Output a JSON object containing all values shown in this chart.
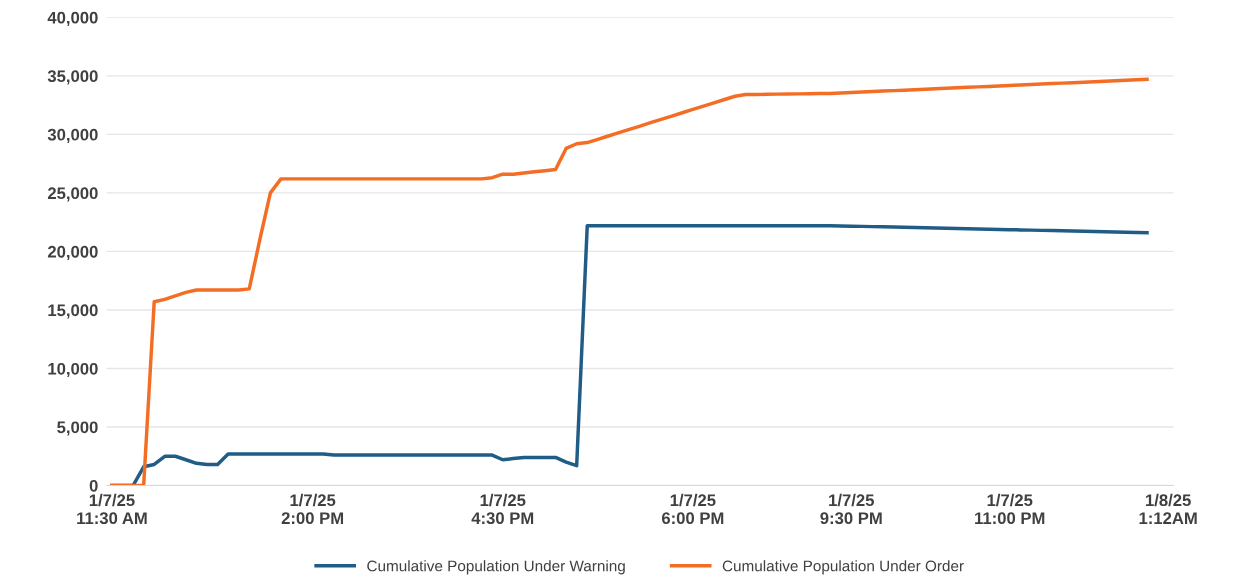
{
  "chart_data": {
    "type": "line",
    "categories": [
      "1/7/25\n11:30 AM",
      null,
      null,
      null,
      null,
      null,
      null,
      null,
      null,
      null,
      null,
      null,
      null,
      null,
      null,
      null,
      null,
      null,
      null,
      "1/7/25\n2:00 PM",
      null,
      null,
      null,
      null,
      null,
      null,
      null,
      null,
      null,
      null,
      null,
      null,
      null,
      null,
      null,
      null,
      null,
      "1/7/25\n4:30 PM",
      null,
      null,
      null,
      null,
      null,
      null,
      null,
      null,
      null,
      null,
      null,
      null,
      null,
      null,
      null,
      null,
      null,
      "1/7/25\n6:00 PM",
      null,
      null,
      null,
      null,
      null,
      null,
      null,
      null,
      null,
      null,
      null,
      null,
      null,
      null,
      "1/7/25\n9:30 PM",
      null,
      null,
      null,
      null,
      null,
      null,
      null,
      null,
      null,
      null,
      null,
      null,
      null,
      null,
      "1/7/25\n11:00 PM",
      null,
      null,
      null,
      null,
      null,
      null,
      null,
      null,
      null,
      null,
      null,
      null,
      null,
      null,
      "1/8/25\n1:12AM"
    ],
    "series": [
      {
        "name": "Cumulative Population Under Warning",
        "color": "#1f5c86",
        "values": [
          0,
          0,
          0,
          1600,
          1800,
          2500,
          2500,
          2200,
          1900,
          1800,
          1800,
          2700,
          2700,
          2700,
          2700,
          2700,
          2700,
          2700,
          2700,
          2700,
          2700,
          2600,
          2600,
          2600,
          2600,
          2600,
          2600,
          2600,
          2600,
          2600,
          2600,
          2600,
          2600,
          2600,
          2600,
          2600,
          2600,
          2200,
          2300,
          2400,
          2400,
          2400,
          2400,
          2000,
          1700,
          22200,
          22200,
          22200,
          22200,
          22200,
          22200,
          22200,
          22200,
          22200,
          22200,
          22200,
          22200,
          22200,
          22200,
          22200,
          22200,
          22200,
          22200,
          22200,
          22200,
          22200,
          22200,
          22200,
          22200,
          22180,
          22160,
          22140,
          22120,
          22100,
          22080,
          22060,
          22040,
          22020,
          22000,
          21980,
          21960,
          21940,
          21920,
          21900,
          21880,
          21860,
          21840,
          21820,
          21800,
          21780,
          21760,
          21740,
          21720,
          21700,
          21680,
          21660,
          21640,
          21620,
          21600,
          null,
          null
        ]
      },
      {
        "name": "Cumulative Population Under Order",
        "color": "#f46d25",
        "values": [
          0,
          0,
          0,
          0,
          15700,
          15900,
          16200,
          16500,
          16700,
          16700,
          16700,
          16700,
          16700,
          16800,
          21000,
          25000,
          26200,
          26200,
          26200,
          26200,
          26200,
          26200,
          26200,
          26200,
          26200,
          26200,
          26200,
          26200,
          26200,
          26200,
          26200,
          26200,
          26200,
          26200,
          26200,
          26200,
          26300,
          26600,
          26600,
          26700,
          26800,
          26900,
          27000,
          28800,
          29200,
          29300,
          29580,
          29860,
          30150,
          30430,
          30710,
          31000,
          31280,
          31560,
          31850,
          32130,
          32410,
          32690,
          32980,
          33260,
          33400,
          33410,
          33420,
          33440,
          33450,
          33460,
          33470,
          33490,
          33500,
          33540,
          33580,
          33620,
          33660,
          33700,
          33740,
          33780,
          33820,
          33860,
          33900,
          33940,
          33980,
          34020,
          34060,
          34100,
          34140,
          34180,
          34220,
          34260,
          34300,
          34340,
          34380,
          34420,
          34460,
          34500,
          34540,
          34580,
          34620,
          34660,
          34700,
          null,
          null
        ]
      }
    ],
    "ylim": [
      0,
      40000
    ],
    "yticks": [
      0,
      {
        "value": 5000,
        "label": "5,000"
      },
      {
        "value": 10000,
        "label": "10,000"
      },
      {
        "value": 15000,
        "label": "15,000"
      },
      {
        "value": 20000,
        "label": "20,000"
      },
      {
        "value": 25000,
        "label": "25,000"
      },
      {
        "value": 30000,
        "label": "30,000"
      },
      {
        "value": 35000,
        "label": "35,000"
      },
      {
        "value": 40000,
        "label": "40,000"
      }
    ],
    "grid": "y",
    "legend": "bottom",
    "marker": "none",
    "line_style": "solid"
  }
}
